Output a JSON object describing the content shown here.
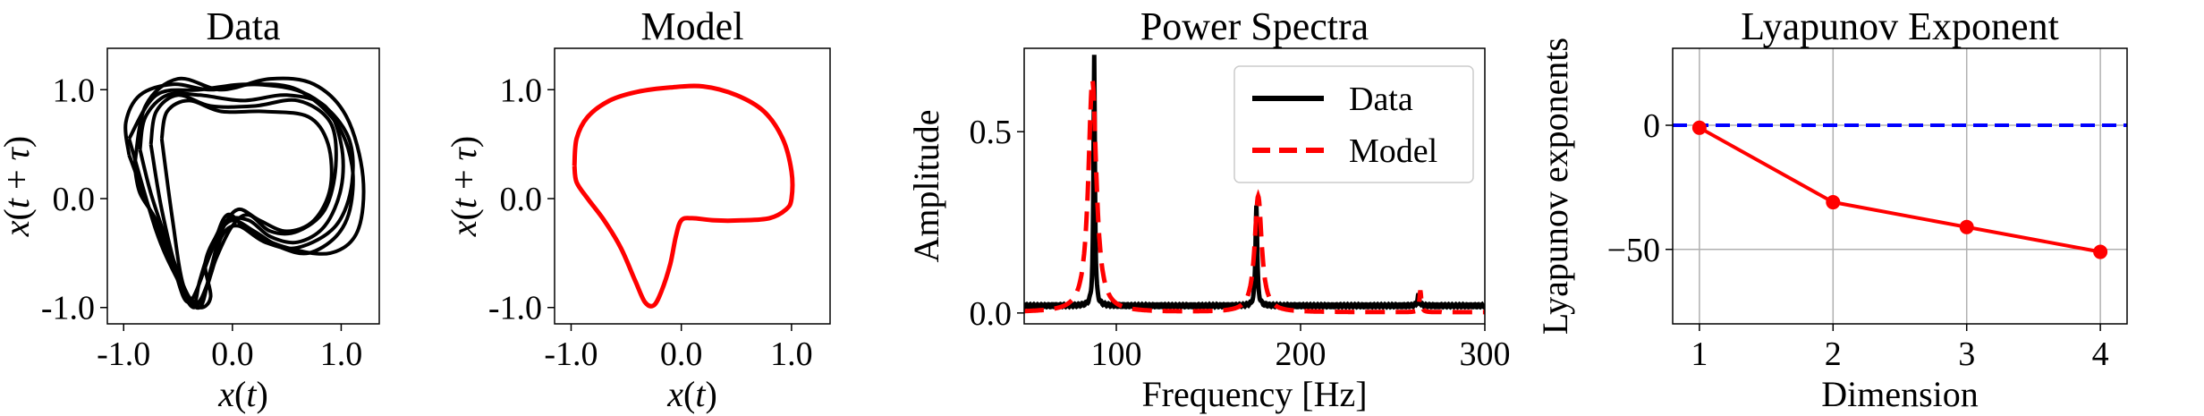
{
  "chart_data": [
    {
      "type": "line",
      "title": "Data",
      "xlabel": "x(t)",
      "ylabel": "x(t + τ)",
      "xlim": [
        -1.15,
        1.35
      ],
      "ylim": [
        -1.15,
        1.38
      ],
      "xticks": [
        -1.0,
        0.0,
        1.0
      ],
      "xtick_labels": [
        "-1.0",
        "0.0",
        "1.0"
      ],
      "yticks": [
        -1.0,
        0.0,
        1.0
      ],
      "ytick_labels": [
        "-1.0",
        "0.0",
        "1.0"
      ],
      "grid": false,
      "color": "#000000",
      "series": [
        {
          "x": [
            -0.95,
            -0.98,
            -0.85,
            -0.55,
            -0.2,
            0.2,
            0.6,
            0.95,
            1.1,
            1.08,
            0.95,
            0.7,
            0.45,
            0.2,
            0.0,
            -0.15,
            -0.25,
            -0.2,
            -0.3,
            -0.45,
            -0.6,
            -0.8,
            -0.95
          ],
          "y": [
            0.4,
            0.7,
            0.95,
            1.05,
            1.0,
            1.05,
            1.0,
            0.7,
            0.3,
            -0.1,
            -0.35,
            -0.5,
            -0.45,
            -0.3,
            -0.2,
            -0.35,
            -0.6,
            -0.9,
            -1.0,
            -0.85,
            -0.5,
            0.0,
            0.4
          ]
        },
        {
          "x": [
            -0.85,
            -0.8,
            -0.6,
            -0.3,
            0.1,
            0.5,
            0.85,
            1.0,
            1.0,
            0.85,
            0.6,
            0.35,
            0.15,
            -0.05,
            -0.2,
            -0.3,
            -0.35,
            -0.45,
            -0.6,
            -0.75,
            -0.85
          ],
          "y": [
            0.45,
            0.75,
            0.95,
            0.95,
            0.9,
            0.95,
            0.85,
            0.5,
            0.1,
            -0.25,
            -0.4,
            -0.35,
            -0.2,
            -0.2,
            -0.45,
            -0.75,
            -0.95,
            -0.8,
            -0.4,
            0.05,
            0.45
          ]
        },
        {
          "x": [
            -0.75,
            -0.7,
            -0.5,
            -0.2,
            0.2,
            0.6,
            0.9,
            0.95,
            0.85,
            0.6,
            0.35,
            0.15,
            0.0,
            -0.15,
            -0.25,
            -0.35,
            -0.5,
            -0.65,
            -0.75
          ],
          "y": [
            0.5,
            0.8,
            0.95,
            0.85,
            0.85,
            0.9,
            0.7,
            0.3,
            -0.1,
            -0.3,
            -0.3,
            -0.15,
            -0.25,
            -0.55,
            -0.85,
            -0.95,
            -0.7,
            -0.1,
            0.5
          ]
        },
        {
          "x": [
            -0.9,
            -0.8,
            -0.5,
            -0.1,
            0.35,
            0.75,
            1.05,
            1.2,
            1.15,
            0.9,
            0.5,
            0.15,
            -0.05,
            -0.2,
            -0.4,
            -0.55,
            -0.7,
            -0.85,
            -0.9
          ],
          "y": [
            0.3,
            0.85,
            1.1,
            1.0,
            1.1,
            1.05,
            0.75,
            0.2,
            -0.3,
            -0.5,
            -0.45,
            -0.3,
            -0.15,
            -0.5,
            -0.95,
            -0.6,
            -0.2,
            0.05,
            0.3
          ]
        },
        {
          "x": [
            -0.65,
            -0.6,
            -0.4,
            -0.1,
            0.3,
            0.7,
            0.88,
            0.9,
            0.75,
            0.5,
            0.25,
            0.05,
            -0.1,
            -0.2,
            -0.3,
            -0.45,
            -0.55,
            -0.65
          ],
          "y": [
            0.55,
            0.8,
            0.9,
            0.8,
            0.8,
            0.75,
            0.5,
            0.1,
            -0.2,
            -0.3,
            -0.2,
            -0.1,
            -0.3,
            -0.65,
            -1.0,
            -0.8,
            -0.2,
            0.55
          ]
        },
        {
          "x": [
            -0.95,
            -0.7,
            -0.3,
            0.2,
            0.7,
            1.05,
            1.1,
            0.95,
            0.6,
            0.3,
            0.05,
            -0.1,
            -0.2,
            -0.35,
            -0.5,
            -0.7,
            -0.95
          ],
          "y": [
            0.55,
            0.95,
            1.0,
            1.05,
            0.95,
            0.6,
            0.15,
            -0.25,
            -0.45,
            -0.4,
            -0.25,
            -0.35,
            -0.7,
            -1.0,
            -0.75,
            -0.3,
            0.55
          ]
        }
      ]
    },
    {
      "type": "line",
      "title": "Model",
      "xlabel": "x(t)",
      "ylabel": "x(t + τ)",
      "xlim": [
        -1.15,
        1.35
      ],
      "ylim": [
        -1.15,
        1.38
      ],
      "xticks": [
        -1.0,
        0.0,
        1.0
      ],
      "xtick_labels": [
        "-1.0",
        "0.0",
        "1.0"
      ],
      "yticks": [
        -1.0,
        0.0,
        1.0
      ],
      "ytick_labels": [
        "-1.0",
        "0.0",
        "1.0"
      ],
      "grid": false,
      "color": "#ff0000",
      "series": [
        {
          "x": [
            -0.97,
            -0.95,
            -0.85,
            -0.65,
            -0.4,
            -0.1,
            0.2,
            0.5,
            0.75,
            0.92,
            1.0,
            1.0,
            0.95,
            0.8,
            0.55,
            0.3,
            0.1,
            0.0,
            -0.05,
            -0.1,
            -0.18,
            -0.25,
            -0.33,
            -0.42,
            -0.55,
            -0.7,
            -0.85,
            -0.95,
            -0.97
          ],
          "y": [
            0.3,
            0.55,
            0.75,
            0.9,
            0.98,
            1.02,
            1.03,
            0.95,
            0.8,
            0.55,
            0.25,
            0.0,
            -0.1,
            -0.18,
            -0.2,
            -0.2,
            -0.18,
            -0.2,
            -0.35,
            -0.6,
            -0.85,
            -0.98,
            -0.95,
            -0.75,
            -0.45,
            -0.2,
            0.0,
            0.15,
            0.3
          ]
        }
      ]
    },
    {
      "type": "line",
      "title": "Power Spectra",
      "xlabel": "Frequency [Hz]",
      "ylabel": "Amplitude",
      "xlim": [
        50,
        300
      ],
      "ylim": [
        -0.03,
        0.73
      ],
      "xticks": [
        100,
        200,
        300
      ],
      "xtick_labels": [
        "100",
        "200",
        "300"
      ],
      "yticks": [
        0.0,
        0.5
      ],
      "ytick_labels": [
        "0.0",
        "0.5"
      ],
      "grid": false,
      "legend_position": "top-right",
      "series": [
        {
          "name": "Data",
          "color": "#000000",
          "dashed": false,
          "peaks": [
            [
              88,
              0.69,
              0.45
            ],
            [
              176,
              0.28,
              0.55
            ],
            [
              264,
              0.03,
              0.6
            ]
          ],
          "baseline": 0.02
        },
        {
          "name": "Model",
          "color": "#ff0000",
          "dashed": true,
          "peaks": [
            [
              87,
              0.64,
              2.6
            ],
            [
              177,
              0.32,
              2.3
            ],
            [
              265,
              0.06,
              0.6
            ]
          ],
          "baseline": 0.002
        }
      ]
    },
    {
      "type": "line",
      "title": "Lyapunov Exponent",
      "xlabel": "Dimension",
      "ylabel": "Lyapunov exponents",
      "xlim": [
        0.8,
        4.2
      ],
      "ylim": [
        -80,
        31
      ],
      "xticks": [
        1,
        2,
        3,
        4
      ],
      "xtick_labels": [
        "1",
        "2",
        "3",
        "4"
      ],
      "yticks": [
        -50,
        0
      ],
      "ytick_labels": [
        "−50",
        "0"
      ],
      "grid": true,
      "reference_line": {
        "y": 0,
        "color": "#0000ff",
        "dashed": true
      },
      "series": [
        {
          "color": "#ff0000",
          "markers": true,
          "x": [
            1,
            2,
            3,
            4
          ],
          "y": [
            -1,
            -31,
            -41,
            -51
          ]
        }
      ]
    }
  ]
}
